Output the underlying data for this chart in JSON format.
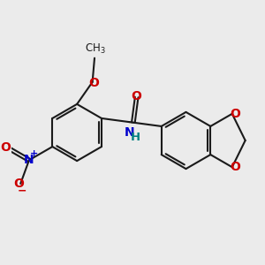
{
  "bg_color": "#ebebeb",
  "bond_color": "#1a1a1a",
  "nitrogen_color": "#0000cc",
  "oxygen_color": "#cc0000",
  "hydrogen_color": "#008080",
  "line_width": 1.5,
  "dbo": 0.055,
  "font_size": 10,
  "figsize": [
    3.0,
    3.0
  ],
  "dpi": 100,
  "xlim": [
    -3.5,
    3.8
  ],
  "ylim": [
    -2.2,
    2.5
  ]
}
